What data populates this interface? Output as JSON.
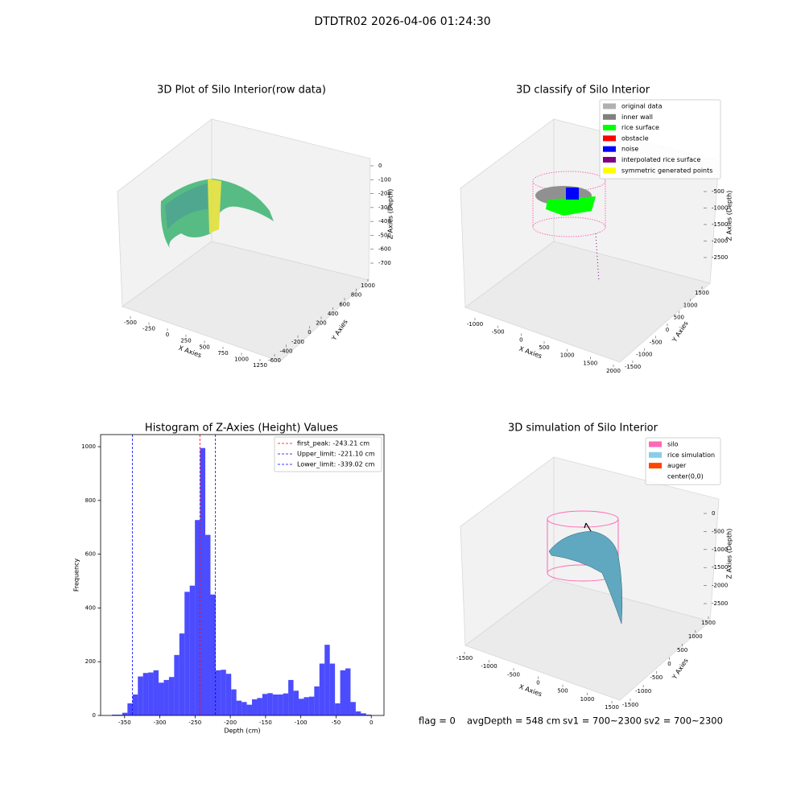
{
  "title": "DTDTR02 2026-04-06 01:24:30",
  "status": [
    "flag = 0",
    "avgDepth = 548 cm",
    "sv1 = 700~2300",
    "sv2 = 700~2300"
  ],
  "chart_data": [
    {
      "type": "scatter3d",
      "title": "3D Plot of Silo Interior(row data)",
      "xlabel": "X Axies",
      "ylabel": "Y Axies",
      "zlabel": "Z Axies (Depth)",
      "xticks": [
        -500,
        -250,
        0,
        250,
        500,
        750,
        1000,
        1250
      ],
      "yticks": [
        -600,
        -400,
        -200,
        0,
        200,
        400,
        600,
        800,
        1000
      ],
      "zticks": [
        0,
        -100,
        -200,
        -300,
        -400,
        -500,
        -600,
        -700
      ]
    },
    {
      "type": "scatter3d",
      "title": "3D classify of Silo Interior",
      "xlabel": "X Axies",
      "ylabel": "Y Axies",
      "zlabel": "Z Axies (Depth)",
      "xticks": [
        -1000,
        -500,
        0,
        500,
        1000,
        1500,
        2000
      ],
      "yticks": [
        -1500,
        -1000,
        -500,
        0,
        500,
        1000,
        1500
      ],
      "zticks": [
        -500,
        -1000,
        -1500,
        -2000,
        -2500
      ],
      "legend": [
        {
          "name": "original data",
          "color": "#b0b0b0"
        },
        {
          "name": "inner wall",
          "color": "#808080"
        },
        {
          "name": "rice surface",
          "color": "#00ff00"
        },
        {
          "name": "obstacle",
          "color": "#ff0000"
        },
        {
          "name": "noise",
          "color": "#0000ff"
        },
        {
          "name": "interpolated rice surface",
          "color": "#800080"
        },
        {
          "name": "symmetric generated points",
          "color": "#ffff00"
        }
      ]
    },
    {
      "type": "histogram",
      "title": "Histogram of Z-Axies (Height) Values",
      "xlabel": "Depth (cm)",
      "ylabel": "Frequency",
      "color": "#0000ff",
      "bins": [
        -368,
        -360.64,
        -353.28,
        -345.92,
        -338.56,
        -331.2,
        -323.84,
        -316.48,
        -309.12,
        -301.76,
        -294.4,
        -287.04,
        -279.68,
        -272.32,
        -264.96,
        -257.6,
        -250.24,
        -242.88,
        -235.52,
        -228.16,
        -220.8,
        -213.44,
        -206.08,
        -198.72,
        -191.36,
        -184,
        -176.64,
        -169.28,
        -161.92,
        -154.56,
        -147.2,
        -139.84,
        -132.48,
        -125.12,
        -117.76,
        -110.4,
        -103.04,
        -95.68,
        -88.32,
        -80.96,
        -73.6,
        -66.24,
        -58.88,
        -51.52,
        -44.16,
        -36.8,
        -29.44,
        -22.08,
        -14.72,
        -7.36,
        0
      ],
      "values": [
        3,
        3,
        10,
        45,
        78,
        145,
        158,
        160,
        168,
        122,
        132,
        143,
        225,
        305,
        460,
        483,
        727,
        995,
        672,
        450,
        168,
        170,
        155,
        97,
        55,
        50,
        40,
        60,
        65,
        80,
        83,
        78,
        78,
        82,
        132,
        92,
        62,
        68,
        70,
        108,
        193,
        263,
        193,
        45,
        168,
        175,
        50,
        15,
        8,
        3
      ],
      "xlim": [
        -384,
        18
      ],
      "ylim": [
        0,
        1045
      ],
      "xticks": [
        -350,
        -300,
        -250,
        -200,
        -150,
        -100,
        -50,
        0
      ],
      "yticks": [
        0,
        200,
        400,
        600,
        800,
        1000
      ],
      "lines": [
        {
          "name": "first_peak: -243.21 cm",
          "value": -243.21,
          "color": "#ff0000"
        },
        {
          "name": "Upper_limit: -221.10 cm",
          "value": -221.1,
          "color": "#0000ff"
        },
        {
          "name": "Lower_limit: -339.02 cm",
          "value": -339.02,
          "color": "#0000ff"
        }
      ]
    },
    {
      "type": "surface3d",
      "title": "3D simulation of Silo Interior",
      "xlabel": "X Axies",
      "ylabel": "Y Axies",
      "zlabel": "Z Axies (Depth)",
      "xticks": [
        -1500,
        -1000,
        -500,
        0,
        500,
        1000,
        1500
      ],
      "yticks": [
        -1500,
        -1000,
        -500,
        0,
        500,
        1000,
        1500
      ],
      "zticks": [
        0,
        -500,
        -1000,
        -1500,
        -2000,
        -2500
      ],
      "legend": [
        {
          "name": "silo",
          "color": "#ff69b4"
        },
        {
          "name": "rice simulation",
          "color": "#87ceeb"
        },
        {
          "name": "auger",
          "color": "#ff4500"
        },
        {
          "name": "center(0,0)",
          "color": null
        }
      ]
    }
  ]
}
